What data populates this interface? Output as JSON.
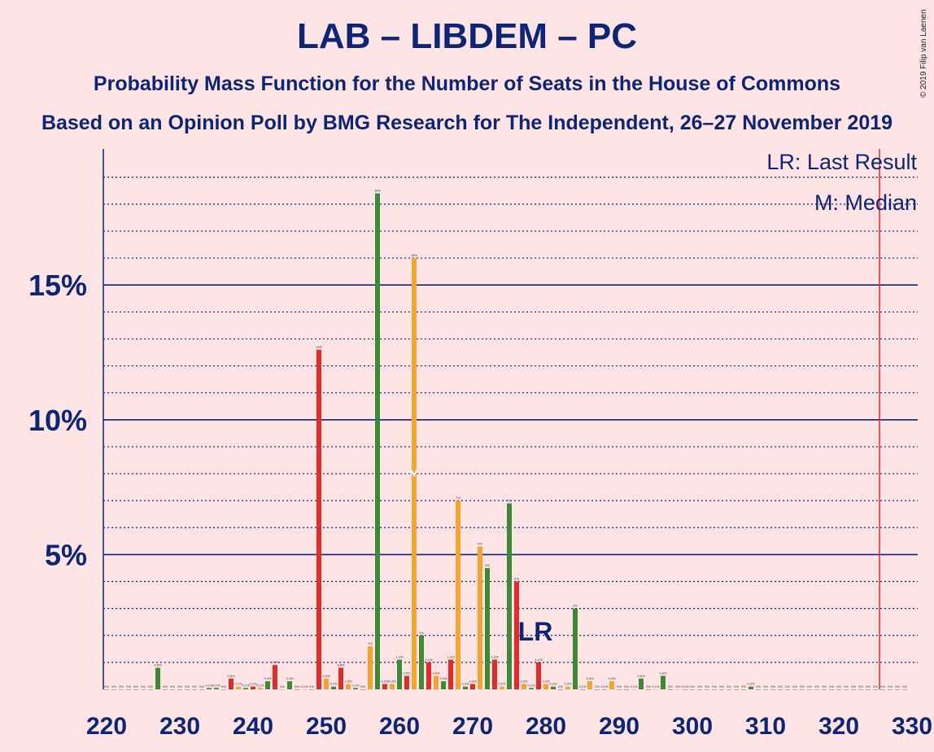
{
  "header": {
    "title": "LAB – LIBDEM – PC",
    "subtitle": "Probability Mass Function for the Number of Seats in the House of Commons",
    "subtitle2": "Based on an Opinion Poll by BMG Research for The Independent, 26–27 November 2019",
    "copyright": "© 2019 Filip van Laenen"
  },
  "chart_data": {
    "type": "bar",
    "xlabel": "",
    "ylabel": "",
    "xlim": [
      220,
      330
    ],
    "ylim": [
      0,
      20
    ],
    "x_ticks": [
      "220",
      "230",
      "240",
      "250",
      "260",
      "270",
      "280",
      "290",
      "300",
      "310",
      "320",
      "330"
    ],
    "y_ticks": [
      {
        "value": 5,
        "label": "5%"
      },
      {
        "value": 10,
        "label": "10%"
      },
      {
        "value": 15,
        "label": "15%"
      }
    ],
    "grid": true,
    "legend": {
      "placement": "top-right",
      "entries": [
        "LR: Last Result",
        "M: Median"
      ]
    },
    "last_result": {
      "seats": 326,
      "label": "LR",
      "label_seats": 279
    },
    "median": {
      "seats": 262
    },
    "colors": {
      "red": "#e32b2b",
      "orange": "#f7a42c",
      "green": "#3a8a36",
      "navy": "#0c2577",
      "lr_line": "#e32b2b",
      "background": "#ffe4e6"
    },
    "bars": [
      {
        "x": 220,
        "v": 0,
        "c": "green",
        "label": "0%"
      },
      {
        "x": 221,
        "v": 0,
        "c": "green",
        "label": "0%"
      },
      {
        "x": 222,
        "v": 0,
        "c": "green",
        "label": "0%"
      },
      {
        "x": 223,
        "v": 0,
        "c": "green",
        "label": "0%"
      },
      {
        "x": 224,
        "v": 0,
        "c": "green",
        "label": "0%"
      },
      {
        "x": 225,
        "v": 0,
        "c": "green",
        "label": "0%"
      },
      {
        "x": 226,
        "v": 0,
        "c": "green",
        "label": "0%"
      },
      {
        "x": 227,
        "v": 0.8,
        "c": "green",
        "label": "0.8%"
      },
      {
        "x": 228,
        "v": 0,
        "c": "green",
        "label": "0%"
      },
      {
        "x": 229,
        "v": 0,
        "c": "green",
        "label": "0%"
      },
      {
        "x": 230,
        "v": 0,
        "c": "green",
        "label": "0%"
      },
      {
        "x": 231,
        "v": 0,
        "c": "green",
        "label": "0%"
      },
      {
        "x": 232,
        "v": 0,
        "c": "green",
        "label": "0%"
      },
      {
        "x": 233,
        "v": 0,
        "c": "green",
        "label": "0%"
      },
      {
        "x": 234,
        "v": 0.05,
        "c": "green",
        "label": "0.1%"
      },
      {
        "x": 235,
        "v": 0.05,
        "c": "green",
        "label": "0.1%"
      },
      {
        "x": 236,
        "v": 0,
        "c": "green",
        "label": "0%"
      },
      {
        "x": 237,
        "v": 0.4,
        "c": "red",
        "label": "0.5%"
      },
      {
        "x": 238,
        "v": 0.1,
        "c": "orange",
        "label": "0.1%"
      },
      {
        "x": 239,
        "v": 0.05,
        "c": "green",
        "label": "0.1%"
      },
      {
        "x": 240,
        "v": 0.1,
        "c": "red",
        "label": "0.1%"
      },
      {
        "x": 241,
        "v": 0.05,
        "c": "orange",
        "label": "0.1%"
      },
      {
        "x": 242,
        "v": 0.3,
        "c": "green",
        "label": "0.4%"
      },
      {
        "x": 243,
        "v": 0.9,
        "c": "red",
        "label": "0.9%"
      },
      {
        "x": 244,
        "v": 0,
        "c": "orange",
        "label": "0%"
      },
      {
        "x": 245,
        "v": 0.3,
        "c": "green",
        "label": "0.4%"
      },
      {
        "x": 246,
        "v": 0,
        "c": "red",
        "label": "0%"
      },
      {
        "x": 247,
        "v": 0,
        "c": "orange",
        "label": "0.1%"
      },
      {
        "x": 248,
        "v": 0,
        "c": "green",
        "label": "0%"
      },
      {
        "x": 249,
        "v": 12.6,
        "c": "red",
        "label": "13%"
      },
      {
        "x": 250,
        "v": 0.4,
        "c": "orange",
        "label": "0.5%"
      },
      {
        "x": 251,
        "v": 0.1,
        "c": "green",
        "label": "0.2%"
      },
      {
        "x": 252,
        "v": 0.8,
        "c": "red",
        "label": "0.8%"
      },
      {
        "x": 253,
        "v": 0.2,
        "c": "orange",
        "label": "0.3%"
      },
      {
        "x": 254,
        "v": 0.05,
        "c": "green",
        "label": "0.1%"
      },
      {
        "x": 255,
        "v": 0,
        "c": "red",
        "label": "0%"
      },
      {
        "x": 256,
        "v": 1.6,
        "c": "orange",
        "label": "2%"
      },
      {
        "x": 257,
        "v": 18.4,
        "c": "green",
        "label": "18%"
      },
      {
        "x": 258,
        "v": 0.2,
        "c": "red",
        "label": "0.2%"
      },
      {
        "x": 259,
        "v": 0.2,
        "c": "orange",
        "label": "0.2%"
      },
      {
        "x": 260,
        "v": 1.1,
        "c": "green",
        "label": "1.2%"
      },
      {
        "x": 261,
        "v": 0.5,
        "c": "red",
        "label": "0.6%"
      },
      {
        "x": 262,
        "v": 16.0,
        "c": "orange",
        "label": "16%"
      },
      {
        "x": 263,
        "v": 2.0,
        "c": "green",
        "label": "2%"
      },
      {
        "x": 264,
        "v": 1.0,
        "c": "red",
        "label": "1.1%"
      },
      {
        "x": 265,
        "v": 0.5,
        "c": "orange",
        "label": "0.6%"
      },
      {
        "x": 266,
        "v": 0.3,
        "c": "green",
        "label": "0.3%"
      },
      {
        "x": 267,
        "v": 1.1,
        "c": "red",
        "label": "1.2%"
      },
      {
        "x": 268,
        "v": 7.0,
        "c": "orange",
        "label": "7%"
      },
      {
        "x": 269,
        "v": 0.1,
        "c": "green",
        "label": "0.2%"
      },
      {
        "x": 270,
        "v": 0.2,
        "c": "red",
        "label": "0.3%"
      },
      {
        "x": 271,
        "v": 5.3,
        "c": "orange",
        "label": "5%"
      },
      {
        "x": 272,
        "v": 4.5,
        "c": "green",
        "label": "4%"
      },
      {
        "x": 273,
        "v": 1.1,
        "c": "red",
        "label": "1.2%"
      },
      {
        "x": 274,
        "v": 0.1,
        "c": "orange",
        "label": "0.2%"
      },
      {
        "x": 275,
        "v": 6.9,
        "c": "green",
        "label": "7%"
      },
      {
        "x": 276,
        "v": 4.0,
        "c": "red",
        "label": "4%"
      },
      {
        "x": 277,
        "v": 0.2,
        "c": "orange",
        "label": "0.3%"
      },
      {
        "x": 278,
        "v": 0.05,
        "c": "green",
        "label": "0.1%"
      },
      {
        "x": 279,
        "v": 1.0,
        "c": "red",
        "label": "1.1%"
      },
      {
        "x": 280,
        "v": 0.2,
        "c": "orange",
        "label": "0.3%"
      },
      {
        "x": 281,
        "v": 0.1,
        "c": "green",
        "label": "0.2%"
      },
      {
        "x": 282,
        "v": 0,
        "c": "red",
        "label": "0%"
      },
      {
        "x": 283,
        "v": 0.1,
        "c": "orange",
        "label": "0.2%"
      },
      {
        "x": 284,
        "v": 3.0,
        "c": "green",
        "label": "3%"
      },
      {
        "x": 285,
        "v": 0,
        "c": "red",
        "label": "0.1%"
      },
      {
        "x": 286,
        "v": 0.3,
        "c": "orange",
        "label": "0.4%"
      },
      {
        "x": 287,
        "v": 0,
        "c": "green",
        "label": "0%"
      },
      {
        "x": 288,
        "v": 0,
        "c": "red",
        "label": "0.1%"
      },
      {
        "x": 289,
        "v": 0.3,
        "c": "orange",
        "label": "0.4%"
      },
      {
        "x": 290,
        "v": 0,
        "c": "green",
        "label": "0%"
      },
      {
        "x": 291,
        "v": 0,
        "c": "red",
        "label": "0%"
      },
      {
        "x": 292,
        "v": 0,
        "c": "orange",
        "label": "0.1%"
      },
      {
        "x": 293,
        "v": 0.4,
        "c": "green",
        "label": "0.5%"
      },
      {
        "x": 294,
        "v": 0,
        "c": "red",
        "label": "0%"
      },
      {
        "x": 295,
        "v": 0,
        "c": "orange",
        "label": "0.1%"
      },
      {
        "x": 296,
        "v": 0.5,
        "c": "green",
        "label": "0.6%"
      },
      {
        "x": 297,
        "v": 0,
        "c": "red",
        "label": "0%"
      },
      {
        "x": 298,
        "v": 0,
        "c": "orange",
        "label": "0%"
      },
      {
        "x": 299,
        "v": 0,
        "c": "green",
        "label": "0.1%"
      },
      {
        "x": 300,
        "v": 0,
        "c": "green",
        "label": "0%"
      },
      {
        "x": 301,
        "v": 0,
        "c": "green",
        "label": "0%"
      },
      {
        "x": 302,
        "v": 0,
        "c": "green",
        "label": "0%"
      },
      {
        "x": 303,
        "v": 0,
        "c": "green",
        "label": "0%"
      },
      {
        "x": 304,
        "v": 0,
        "c": "green",
        "label": "0%"
      },
      {
        "x": 305,
        "v": 0,
        "c": "green",
        "label": "0%"
      },
      {
        "x": 306,
        "v": 0,
        "c": "green",
        "label": "0%"
      },
      {
        "x": 307,
        "v": 0,
        "c": "green",
        "label": "0%"
      },
      {
        "x": 308,
        "v": 0.1,
        "c": "green",
        "label": "0.2%"
      },
      {
        "x": 309,
        "v": 0,
        "c": "green",
        "label": "0%"
      },
      {
        "x": 310,
        "v": 0,
        "c": "green",
        "label": "0%"
      },
      {
        "x": 311,
        "v": 0,
        "c": "green",
        "label": "0%"
      },
      {
        "x": 312,
        "v": 0,
        "c": "green",
        "label": "0%"
      },
      {
        "x": 313,
        "v": 0,
        "c": "green",
        "label": "0%"
      },
      {
        "x": 314,
        "v": 0,
        "c": "green",
        "label": "0%"
      },
      {
        "x": 315,
        "v": 0,
        "c": "green",
        "label": "0%"
      },
      {
        "x": 316,
        "v": 0,
        "c": "green",
        "label": "0%"
      },
      {
        "x": 317,
        "v": 0,
        "c": "green",
        "label": "0%"
      },
      {
        "x": 318,
        "v": 0,
        "c": "green",
        "label": "0%"
      },
      {
        "x": 319,
        "v": 0,
        "c": "green",
        "label": "0%"
      },
      {
        "x": 320,
        "v": 0,
        "c": "green",
        "label": "0%"
      },
      {
        "x": 321,
        "v": 0,
        "c": "green",
        "label": "0%"
      },
      {
        "x": 322,
        "v": 0,
        "c": "green",
        "label": "0%"
      },
      {
        "x": 323,
        "v": 0,
        "c": "green",
        "label": "0%"
      },
      {
        "x": 324,
        "v": 0,
        "c": "green",
        "label": "0%"
      },
      {
        "x": 325,
        "v": 0,
        "c": "green",
        "label": "0%"
      },
      {
        "x": 326,
        "v": 0,
        "c": "green",
        "label": "0%"
      },
      {
        "x": 327,
        "v": 0,
        "c": "green",
        "label": "0%"
      },
      {
        "x": 328,
        "v": 0,
        "c": "green",
        "label": "0%"
      },
      {
        "x": 329,
        "v": 0,
        "c": "green",
        "label": "0%"
      }
    ]
  }
}
